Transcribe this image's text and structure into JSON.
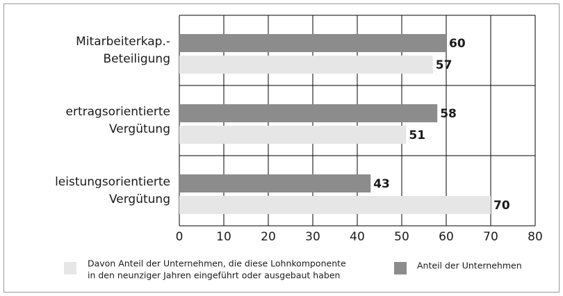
{
  "chart_data": {
    "type": "bar",
    "orientation": "horizontal",
    "categories": [
      [
        "Mitarbeiterkap.-",
        "Beteiligung"
      ],
      [
        "ertragsorientierte",
        "Vergütung"
      ],
      [
        "leistungsorientierte",
        "Vergütung"
      ]
    ],
    "series": [
      {
        "name": [
          "Anteil der Unternehmen"
        ],
        "color": "#8c8c8c",
        "values": [
          60,
          58,
          43
        ]
      },
      {
        "name": [
          "Davon Anteil der Unternehmen, die diese Lohnkomponente",
          "in den neunziger Jahren eingeführt oder ausgebaut haben"
        ],
        "color": "#e6e6e6",
        "values": [
          57,
          51,
          70
        ]
      }
    ],
    "xlim": [
      0,
      80
    ],
    "xticks": [
      0,
      10,
      20,
      30,
      40,
      50,
      60,
      70,
      80
    ],
    "grid": true
  }
}
